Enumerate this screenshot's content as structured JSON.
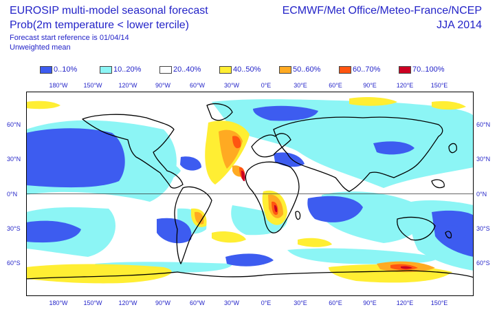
{
  "header": {
    "title": "EUROSIP multi-model seasonal forecast",
    "subtitle": "Prob(2m temperature < lower tercile)",
    "start_reference": "Forecast start reference is 01/04/14",
    "weighting": "Unweighted mean",
    "centres": "ECMWF/Met Office/Meteo-France/NCEP",
    "season": "JJA 2014"
  },
  "legend": [
    {
      "label": "0..10%",
      "color": "#3d5cf0"
    },
    {
      "label": "10..20%",
      "color": "#8cf5f5"
    },
    {
      "label": "20..40%",
      "color": "#ffffff"
    },
    {
      "label": "40..50%",
      "color": "#ffee33"
    },
    {
      "label": "50..60%",
      "color": "#ffaa22"
    },
    {
      "label": "60..70%",
      "color": "#ff5511"
    },
    {
      "label": "70..100%",
      "color": "#cc0022"
    }
  ],
  "lon_labels": [
    "180°W",
    "150°W",
    "120°W",
    "90°W",
    "60°W",
    "30°W",
    "0°E",
    "30°E",
    "60°E",
    "90°E",
    "120°E",
    "150°E"
  ],
  "lat_labels_left": [
    "60°N",
    "30°N",
    "0°N",
    "30°S",
    "60°S"
  ],
  "lat_labels_right": [
    "60°N",
    "30°N",
    "0°N",
    "30°S",
    "60°S"
  ]
}
